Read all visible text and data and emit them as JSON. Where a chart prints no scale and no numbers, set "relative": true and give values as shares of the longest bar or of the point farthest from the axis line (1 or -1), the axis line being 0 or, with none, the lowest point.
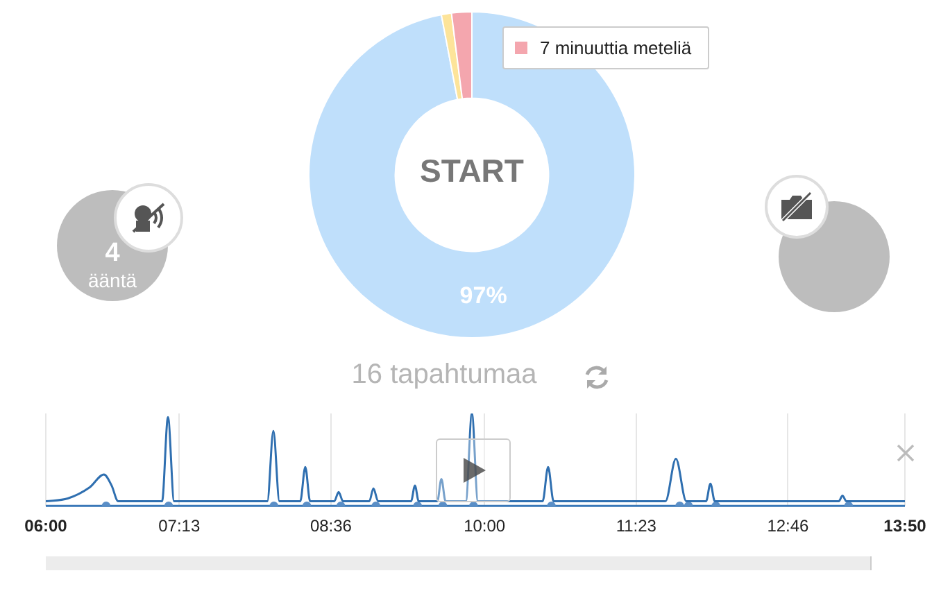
{
  "chart_data": [
    {
      "type": "donut",
      "categories": [
        null,
        null,
        "7 minuuttia meteliä"
      ],
      "values": [
        97,
        1,
        2
      ],
      "colors": [
        "#bfdffb",
        "#fde49a",
        "#f4a6ae"
      ],
      "value_labels": [
        "97%",
        null,
        null
      ],
      "legend": "top right",
      "annotations": [
        "START",
        "16 tapahtumaa",
        "4",
        "ääntä"
      ]
    },
    {
      "type": "line",
      "relative": true,
      "grid": "x",
      "xlim": [
        6,
        13.8333
      ],
      "xticks": [
        {
          "value": 6,
          "label": "06:00"
        },
        {
          "value": 7.2167,
          "label": "07:13"
        },
        {
          "value": 8.6,
          "label": "08:36"
        },
        {
          "value": 10,
          "label": "10:00"
        },
        {
          "value": 11.3833,
          "label": "11:23"
        },
        {
          "value": 12.7667,
          "label": "12:46"
        },
        {
          "value": 13.8333,
          "label": "13:50"
        }
      ],
      "series": [
        {
          "type": "line",
          "color": "#2f6fb0",
          "x": [
            6,
            6.2,
            6.4,
            6.53,
            6.6,
            6.66,
            7.06,
            7.114,
            7.17,
            8.02,
            8.075,
            8.13,
            8.32,
            8.366,
            8.41,
            8.63,
            8.67,
            8.71,
            8.95,
            8.987,
            9.03,
            9.33,
            9.366,
            9.4,
            9.57,
            9.607,
            9.645,
            9.83,
            9.885,
            9.94,
            10.53,
            10.58,
            10.63,
            11.65,
            11.745,
            11.84,
            12.02,
            12.06,
            12.1,
            13.23,
            13.264,
            13.3,
            13.8333
          ],
          "values": [
            0.05,
            0.08,
            0.2,
            0.34,
            0.22,
            0.05,
            0.05,
            0.96,
            0.05,
            0.05,
            0.81,
            0.05,
            0.05,
            0.42,
            0.05,
            0.05,
            0.15,
            0.05,
            0.05,
            0.19,
            0.05,
            0.05,
            0.22,
            0.05,
            0.05,
            0.29,
            0.05,
            0.05,
            1,
            0.05,
            0.05,
            0.42,
            0.05,
            0.05,
            0.51,
            0.05,
            0.05,
            0.24,
            0.05,
            0.05,
            0.11,
            0.05,
            0.05
          ]
        },
        {
          "type": "scatter",
          "color": "#5b8fc7",
          "x": [
            6.55,
            7.12,
            8.08,
            8.38,
            8.69,
            9.01,
            9.39,
            9.62,
            9.9,
            10.61,
            11.78,
            11.86,
            12.11,
            13.32
          ],
          "values": [
            0,
            0,
            0,
            0,
            0,
            0,
            0,
            0,
            0,
            0,
            0,
            0,
            0,
            0
          ]
        }
      ]
    }
  ]
}
